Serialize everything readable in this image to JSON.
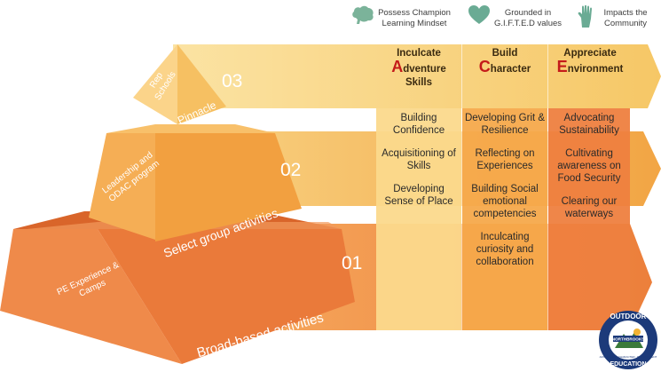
{
  "headers": [
    {
      "icon": "brain-icon",
      "text": "Possess Champion Learning Mindset",
      "color": "#7bb39a"
    },
    {
      "icon": "heart-icon",
      "text": "Grounded in G.I.F.T.E.D values",
      "color": "#6aab94"
    },
    {
      "icon": "hand-icon",
      "text": "Impacts the Community",
      "color": "#6aab94"
    }
  ],
  "columns": [
    {
      "title_pre": "Inculcate",
      "title_initial": "A",
      "title_rest": "dventure",
      "title_post": "Skills",
      "items": [
        "Building Confidence",
        "Acquisitioning of Skills",
        "Developing Sense of Place"
      ]
    },
    {
      "title_pre": "Build",
      "title_initial": "C",
      "title_rest": "haracter",
      "title_post": "",
      "items": [
        "Developing Grit & Resilience",
        "Reflecting on Experiences",
        "Building Social emotional competencies",
        "Inculcating curiosity and collaboration"
      ]
    },
    {
      "title_pre": "Appreciate",
      "title_initial": "E",
      "title_rest": "nvironment",
      "title_post": "",
      "items": [
        "Advocating Sustainability",
        "Cultivating awareness on Food Security",
        "Clearing our waterways"
      ]
    }
  ],
  "tiers": [
    {
      "number": "03",
      "face_text": "Rep Schools",
      "side_label": "Pinnacle"
    },
    {
      "number": "02",
      "face_text": "Leadership and ODAC program",
      "side_label": "Select group activities"
    },
    {
      "number": "01",
      "face_text": "PE Experience & Camps",
      "side_label": "Broad-based activities"
    }
  ],
  "logo": {
    "top_text": "OUTDOOR",
    "mid_text": "NORTHBROOKS",
    "bottom_text": "EDUCATION",
    "motto": "ADVENTURE · CHARACTER · ENVIRONMENT"
  },
  "colors": {
    "band_light": "#f8d27a",
    "band_mid": "#f3b04a",
    "band_dark": "#ee8a3c",
    "col1": "#fbd889",
    "col2": "#f5a94b",
    "col3": "#ee7f3f",
    "accent_red": "#c41a1a"
  }
}
